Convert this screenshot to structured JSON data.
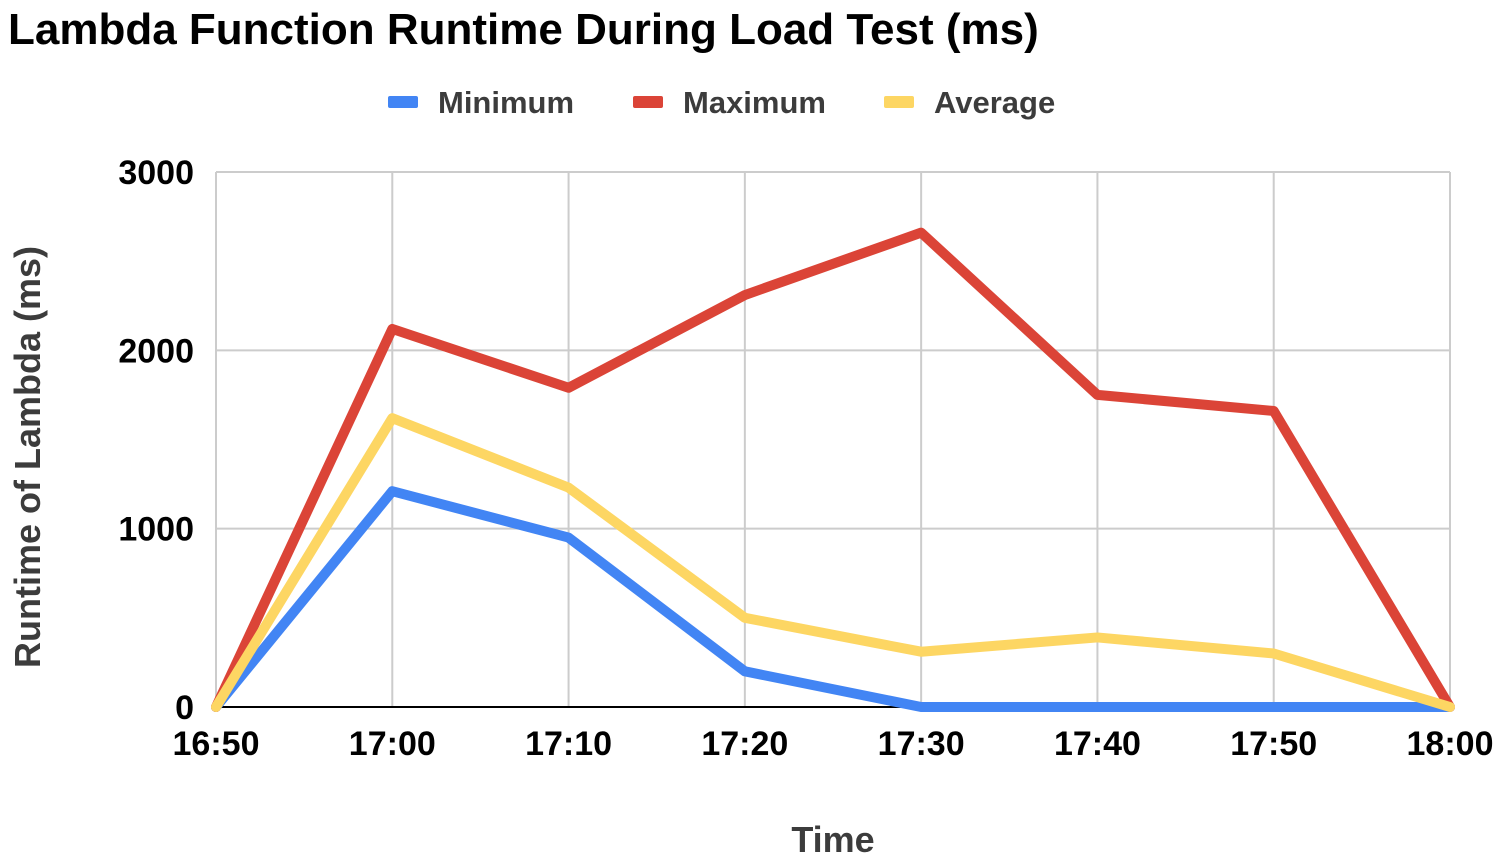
{
  "chart_data": {
    "type": "line",
    "title": "Lambda Function Runtime During Load Test (ms)",
    "xlabel": "Time",
    "ylabel": "Runtime of Lambda (ms)",
    "ylim": [
      0,
      3000
    ],
    "yticks": [
      "0",
      "1000",
      "2000",
      "3000"
    ],
    "categories": [
      "16:50",
      "17:00",
      "17:10",
      "17:20",
      "17:30",
      "17:40",
      "17:50",
      "18:00"
    ],
    "grid": true,
    "legend_position": "top",
    "series": [
      {
        "name": "Minimum",
        "color": "#4285f4",
        "values": [
          0,
          1210,
          950,
          200,
          0,
          0,
          0,
          0
        ]
      },
      {
        "name": "Maximum",
        "color": "#db4437",
        "values": [
          0,
          2120,
          1790,
          2310,
          2660,
          1750,
          1660,
          0
        ]
      },
      {
        "name": "Average",
        "color": "#fdd663",
        "values": [
          0,
          1620,
          1230,
          500,
          310,
          390,
          300,
          0
        ]
      }
    ]
  }
}
